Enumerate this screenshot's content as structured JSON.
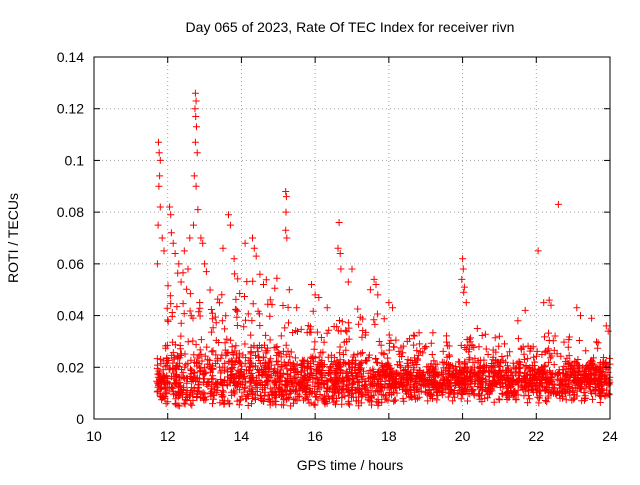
{
  "chart_data": {
    "type": "scatter",
    "title": "Day 065 of 2023, Rate Of TEC Index for receiver rivn",
    "xlabel": "GPS time / hours",
    "ylabel": "ROTI / TECUs",
    "xlim": [
      10,
      24
    ],
    "ylim": [
      0,
      0.14
    ],
    "xticks": [
      "10",
      "12",
      "14",
      "16",
      "18",
      "20",
      "22",
      "24"
    ],
    "yticks": [
      "0",
      "0.02",
      "0.04",
      "0.06",
      "0.08",
      "0.1",
      "0.12",
      "0.14"
    ],
    "grid": true,
    "marker": "+",
    "color": "#ff0000",
    "series": [
      {
        "name": "ROTI",
        "points": [
          [
            11.75,
            0.107
          ],
          [
            11.77,
            0.103
          ],
          [
            11.8,
            0.1
          ],
          [
            11.78,
            0.094
          ],
          [
            11.76,
            0.09
          ],
          [
            11.8,
            0.082
          ],
          [
            11.74,
            0.075
          ],
          [
            11.85,
            0.07
          ],
          [
            11.9,
            0.065
          ],
          [
            11.72,
            0.06
          ],
          [
            12.05,
            0.082
          ],
          [
            12.08,
            0.079
          ],
          [
            12.1,
            0.072
          ],
          [
            12.15,
            0.068
          ],
          [
            12.2,
            0.064
          ],
          [
            12.3,
            0.06
          ],
          [
            12.45,
            0.065
          ],
          [
            12.55,
            0.058
          ],
          [
            12.6,
            0.07
          ],
          [
            12.7,
            0.075
          ],
          [
            12.75,
            0.126
          ],
          [
            12.77,
            0.123
          ],
          [
            12.74,
            0.12
          ],
          [
            12.76,
            0.117
          ],
          [
            12.78,
            0.113
          ],
          [
            12.75,
            0.107
          ],
          [
            12.8,
            0.103
          ],
          [
            12.72,
            0.094
          ],
          [
            12.77,
            0.09
          ],
          [
            12.82,
            0.081
          ],
          [
            12.9,
            0.07
          ],
          [
            12.95,
            0.068
          ],
          [
            13.0,
            0.06
          ],
          [
            13.05,
            0.057
          ],
          [
            13.5,
            0.066
          ],
          [
            13.65,
            0.079
          ],
          [
            13.7,
            0.075
          ],
          [
            13.8,
            0.062
          ],
          [
            14.1,
            0.068
          ],
          [
            14.3,
            0.07
          ],
          [
            14.35,
            0.066
          ],
          [
            14.4,
            0.063
          ],
          [
            14.5,
            0.056
          ],
          [
            14.6,
            0.052
          ],
          [
            15.2,
            0.088
          ],
          [
            15.22,
            0.086
          ],
          [
            15.21,
            0.08
          ],
          [
            15.2,
            0.073
          ],
          [
            15.23,
            0.07
          ],
          [
            15.3,
            0.05
          ],
          [
            15.5,
            0.043
          ],
          [
            15.9,
            0.052
          ],
          [
            16.0,
            0.048
          ],
          [
            16.1,
            0.047
          ],
          [
            16.65,
            0.076
          ],
          [
            16.62,
            0.066
          ],
          [
            16.68,
            0.064
          ],
          [
            16.7,
            0.058
          ],
          [
            16.9,
            0.053
          ],
          [
            17.0,
            0.058
          ],
          [
            17.5,
            0.05
          ],
          [
            17.6,
            0.054
          ],
          [
            17.65,
            0.052
          ],
          [
            17.7,
            0.048
          ],
          [
            18.0,
            0.045
          ],
          [
            18.1,
            0.043
          ],
          [
            18.5,
            0.03
          ],
          [
            19.0,
            0.028
          ],
          [
            20.0,
            0.062
          ],
          [
            20.02,
            0.058
          ],
          [
            19.98,
            0.054
          ],
          [
            20.05,
            0.051
          ],
          [
            20.03,
            0.049
          ],
          [
            20.1,
            0.045
          ],
          [
            20.4,
            0.035
          ],
          [
            21.0,
            0.032
          ],
          [
            21.5,
            0.038
          ],
          [
            21.7,
            0.042
          ],
          [
            22.05,
            0.065
          ],
          [
            22.2,
            0.045
          ],
          [
            22.35,
            0.046
          ],
          [
            22.4,
            0.044
          ],
          [
            22.6,
            0.083
          ],
          [
            23.1,
            0.043
          ],
          [
            23.2,
            0.04
          ],
          [
            23.5,
            0.039
          ],
          [
            23.9,
            0.036
          ],
          [
            23.95,
            0.034
          ]
        ]
      }
    ],
    "dense_band": {
      "description": "dense red '+' cloud",
      "x_range": [
        11.7,
        24
      ],
      "y_center": 0.015,
      "y_spread": 0.009
    }
  }
}
